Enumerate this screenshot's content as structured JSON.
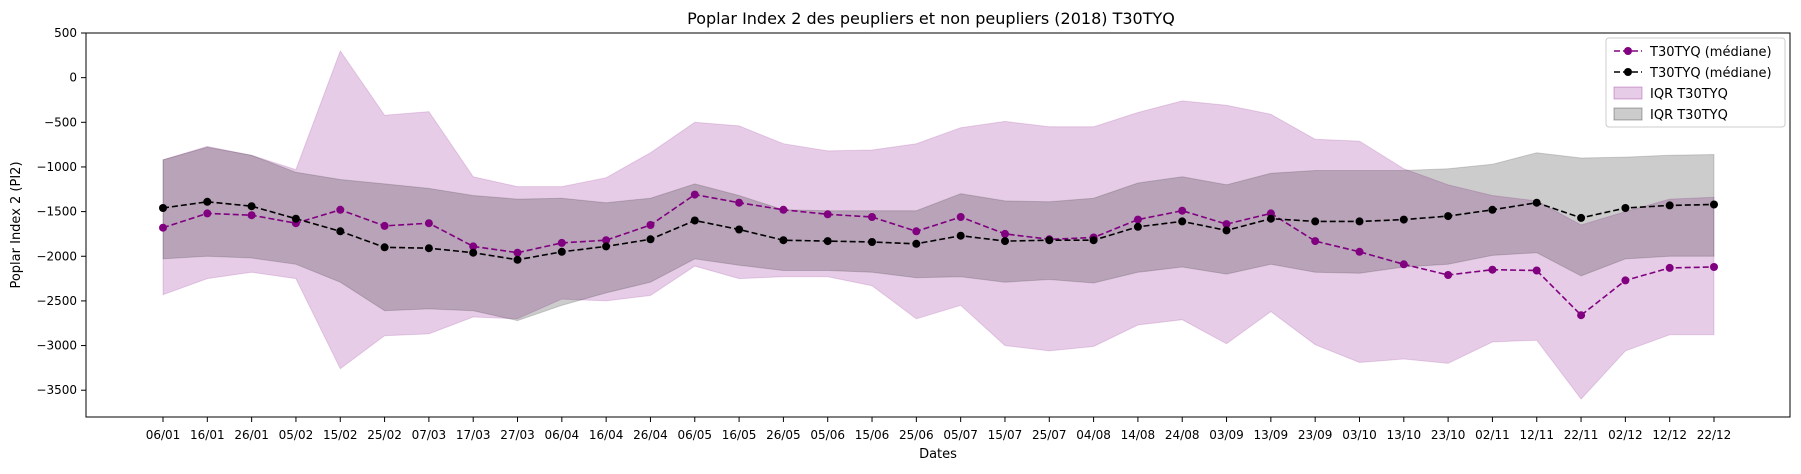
{
  "chart_data": {
    "type": "line",
    "title": "Poplar Index 2 des peupliers et non peupliers (2018) T30TYQ",
    "xlabel": "Dates",
    "ylabel": "Poplar Index 2 (PI2)",
    "ylim": [
      -3800,
      500
    ],
    "yticks": [
      500,
      0,
      -500,
      -1000,
      -1500,
      -2000,
      -2500,
      -3000,
      -3500
    ],
    "grid": false,
    "legend_position": "top-right",
    "categories": [
      "06/01",
      "16/01",
      "26/01",
      "05/02",
      "15/02",
      "25/02",
      "07/03",
      "17/03",
      "27/03",
      "06/04",
      "16/04",
      "26/04",
      "06/05",
      "16/05",
      "26/05",
      "05/06",
      "15/06",
      "25/06",
      "05/07",
      "15/07",
      "25/07",
      "04/08",
      "14/08",
      "24/08",
      "03/09",
      "13/09",
      "23/09",
      "03/10",
      "13/10",
      "23/10",
      "02/11",
      "12/11",
      "22/11",
      "02/12",
      "12/12",
      "22/12"
    ],
    "series": [
      {
        "name": "T30TYQ (médiane)",
        "color": "#800080",
        "style": "dashed-marker",
        "values": [
          -1680,
          -1520,
          -1540,
          -1630,
          -1480,
          -1660,
          -1630,
          -1890,
          -1960,
          -1850,
          -1820,
          -1650,
          -1310,
          -1400,
          -1480,
          -1530,
          -1560,
          -1720,
          -1560,
          -1750,
          -1810,
          -1790,
          -1590,
          -1490,
          -1640,
          -1520,
          -1830,
          -1950,
          -2090,
          -2210,
          -2150,
          -2160,
          -2660,
          -2270,
          -2130,
          -2120
        ],
        "iqr_low": [
          -2430,
          -2250,
          -2180,
          -2250,
          -3260,
          -2890,
          -2870,
          -2680,
          -2700,
          -2480,
          -2500,
          -2440,
          -2110,
          -2250,
          -2230,
          -2230,
          -2330,
          -2700,
          -2550,
          -3000,
          -3060,
          -3010,
          -2770,
          -2710,
          -2980,
          -2620,
          -2990,
          -3190,
          -3150,
          -3200,
          -2960,
          -2940,
          -3600,
          -3060,
          -2880,
          -2880
        ],
        "iqr_high": [
          -920,
          -770,
          -870,
          -1030,
          300,
          -420,
          -380,
          -1110,
          -1220,
          -1220,
          -1120,
          -840,
          -500,
          -540,
          -740,
          -820,
          -810,
          -740,
          -560,
          -490,
          -550,
          -550,
          -390,
          -260,
          -310,
          -410,
          -690,
          -710,
          -1020,
          -1200,
          -1320,
          -1380,
          -1650,
          -1500,
          -1360,
          -1340
        ]
      },
      {
        "name": "T30TYQ (médiane)",
        "color": "#000000",
        "style": "dashed-marker",
        "values": [
          -1460,
          -1390,
          -1440,
          -1580,
          -1720,
          -1900,
          -1910,
          -1960,
          -2040,
          -1950,
          -1890,
          -1810,
          -1600,
          -1700,
          -1820,
          -1830,
          -1840,
          -1860,
          -1770,
          -1830,
          -1820,
          -1820,
          -1670,
          -1610,
          -1710,
          -1580,
          -1610,
          -1610,
          -1590,
          -1550,
          -1480,
          -1400,
          -1570,
          -1460,
          -1430,
          -1420
        ],
        "iqr_low": [
          -2030,
          -2000,
          -2020,
          -2090,
          -2290,
          -2610,
          -2590,
          -2610,
          -2720,
          -2550,
          -2410,
          -2290,
          -2030,
          -2100,
          -2160,
          -2160,
          -2180,
          -2240,
          -2230,
          -2290,
          -2260,
          -2300,
          -2180,
          -2120,
          -2200,
          -2090,
          -2180,
          -2190,
          -2120,
          -2090,
          -1990,
          -1960,
          -2220,
          -2030,
          -2000,
          -2000
        ],
        "iqr_high": [
          -920,
          -780,
          -870,
          -1060,
          -1140,
          -1190,
          -1240,
          -1320,
          -1360,
          -1350,
          -1400,
          -1350,
          -1190,
          -1320,
          -1480,
          -1490,
          -1490,
          -1490,
          -1300,
          -1380,
          -1390,
          -1350,
          -1180,
          -1110,
          -1200,
          -1070,
          -1040,
          -1040,
          -1040,
          -1020,
          -970,
          -840,
          -900,
          -890,
          -870,
          -860
        ]
      }
    ],
    "legend": [
      {
        "label": "T30TYQ (médiane)",
        "kind": "line",
        "color": "#800080"
      },
      {
        "label": "T30TYQ (médiane)",
        "kind": "line",
        "color": "#000000"
      },
      {
        "label": "IQR T30TYQ",
        "kind": "area",
        "color": "#800080"
      },
      {
        "label": "IQR T30TYQ",
        "kind": "area",
        "color": "#000000"
      }
    ]
  }
}
